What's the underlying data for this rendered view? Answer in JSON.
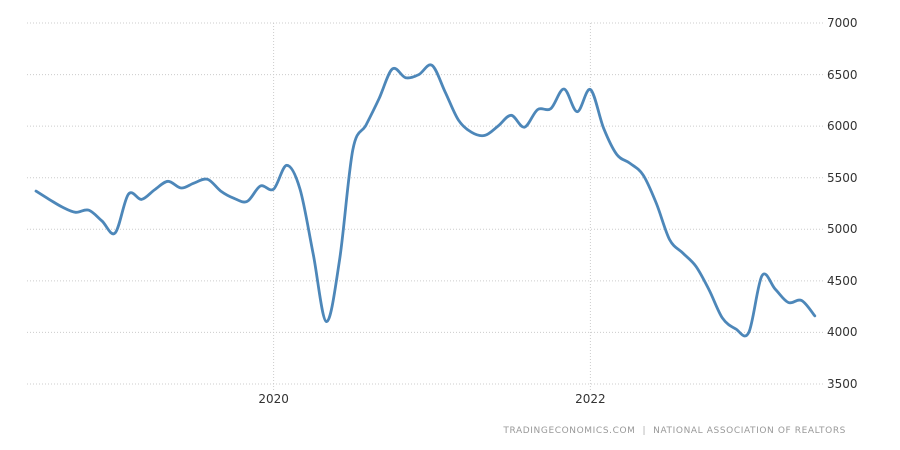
{
  "chart_data": {
    "type": "line",
    "title": "",
    "xlabel": "",
    "ylabel": "",
    "ylim": [
      3500,
      7000
    ],
    "y_ticks": [
      7000,
      6500,
      6000,
      5500,
      5000,
      4500,
      4000,
      3500
    ],
    "x_axis_labels": [
      {
        "label": "2020",
        "month_index": 18
      },
      {
        "label": "2022",
        "month_index": 42
      }
    ],
    "grid": "dotted",
    "legend_position": "none",
    "line_color": "#4d87b9",
    "grid_color": "#cccccc",
    "tick_label_color": "#333333",
    "x": [
      "2018-07",
      "2018-08",
      "2018-09",
      "2018-10",
      "2018-11",
      "2018-12",
      "2019-01",
      "2019-02",
      "2019-03",
      "2019-04",
      "2019-05",
      "2019-06",
      "2019-07",
      "2019-08",
      "2019-09",
      "2019-10",
      "2019-11",
      "2019-12",
      "2020-01",
      "2020-02",
      "2020-03",
      "2020-04",
      "2020-05",
      "2020-06",
      "2020-07",
      "2020-08",
      "2020-09",
      "2020-10",
      "2020-11",
      "2020-12",
      "2021-01",
      "2021-02",
      "2021-03",
      "2021-04",
      "2021-05",
      "2021-06",
      "2021-07",
      "2021-08",
      "2021-09",
      "2021-10",
      "2021-11",
      "2021-12",
      "2022-01",
      "2022-02",
      "2022-03",
      "2022-04",
      "2022-05",
      "2022-06",
      "2022-07",
      "2022-08",
      "2022-09",
      "2022-10",
      "2022-11",
      "2022-12",
      "2023-01",
      "2023-02",
      "2023-03",
      "2023-04",
      "2023-05",
      "2023-06"
    ],
    "values": [
      5370,
      5290,
      5215,
      5165,
      5185,
      5080,
      4965,
      5340,
      5290,
      5385,
      5465,
      5400,
      5450,
      5485,
      5370,
      5300,
      5270,
      5420,
      5390,
      5620,
      5390,
      4760,
      4105,
      4705,
      5770,
      6010,
      6270,
      6555,
      6470,
      6500,
      6590,
      6330,
      6060,
      5940,
      5910,
      6000,
      6105,
      5990,
      6160,
      6170,
      6360,
      6140,
      6355,
      5980,
      5725,
      5640,
      5525,
      5250,
      4900,
      4770,
      4640,
      4410,
      4140,
      4035,
      4000,
      4550,
      4420,
      4290,
      4310,
      4160
    ]
  },
  "attribution": {
    "provider": "TRADINGECONOMICS.COM",
    "separator": "|",
    "source": "NATIONAL ASSOCIATION OF REALTORS",
    "color": "#999999"
  }
}
